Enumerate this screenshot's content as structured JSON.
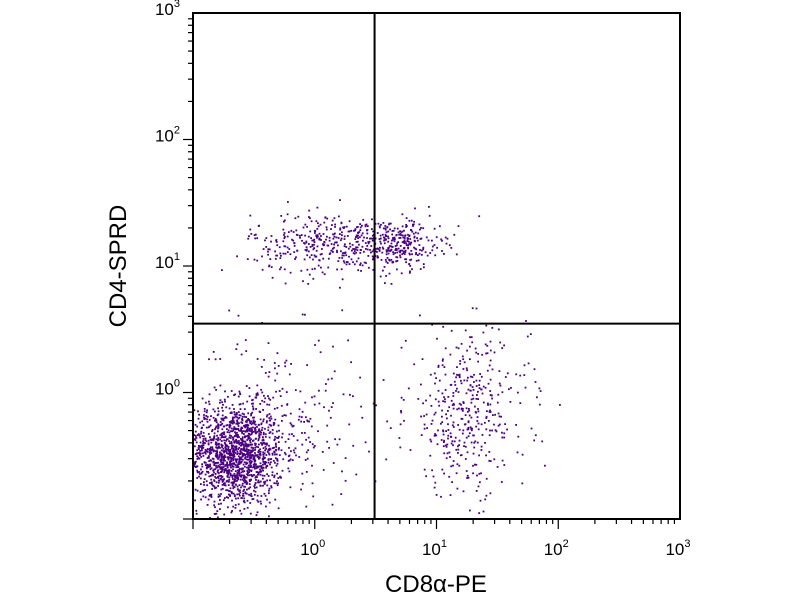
{
  "chart_data": {
    "type": "scatter",
    "title": "",
    "xlabel": "CD8α-PE",
    "ylabel": "CD4-SPRD",
    "x_scale": "log",
    "y_scale": "log",
    "xlim": [
      0.1,
      1000
    ],
    "ylim": [
      0.1,
      1000
    ],
    "x_ticks": [
      {
        "base": "10",
        "exp": "0",
        "value": 1
      },
      {
        "base": "10",
        "exp": "1",
        "value": 10
      },
      {
        "base": "10",
        "exp": "2",
        "value": 100
      },
      {
        "base": "10",
        "exp": "3",
        "value": 1000
      }
    ],
    "y_ticks": [
      {
        "base": "10",
        "exp": "0",
        "value": 1
      },
      {
        "base": "10",
        "exp": "1",
        "value": 10
      },
      {
        "base": "10",
        "exp": "2",
        "value": 100
      },
      {
        "base": "10",
        "exp": "3",
        "value": 1000
      }
    ],
    "quadrant_gates": {
      "x": 3.1,
      "y": 3.5
    },
    "point_color": "#4b0082",
    "populations": [
      {
        "region": "lower-left",
        "x_center": 0.22,
        "y_center": 0.32,
        "x_spread_decades": 0.2,
        "y_spread_decades": 0.2,
        "approx_count": 1500
      },
      {
        "region": "lower-left",
        "x_center": 0.5,
        "y_center": 0.6,
        "x_spread_decades": 0.35,
        "y_spread_decades": 0.35,
        "approx_count": 260
      },
      {
        "region": "upper-left",
        "x_center": 1.5,
        "y_center": 15,
        "x_spread_decades": 0.35,
        "y_spread_decades": 0.12,
        "approx_count": 420
      },
      {
        "region": "upper-right",
        "x_center": 5,
        "y_center": 15,
        "x_spread_decades": 0.18,
        "y_spread_decades": 0.1,
        "approx_count": 220
      },
      {
        "region": "lower-right",
        "x_center": 18,
        "y_center": 0.7,
        "x_spread_decades": 0.25,
        "y_spread_decades": 0.32,
        "approx_count": 420
      }
    ],
    "grid": false,
    "legend": "none"
  }
}
